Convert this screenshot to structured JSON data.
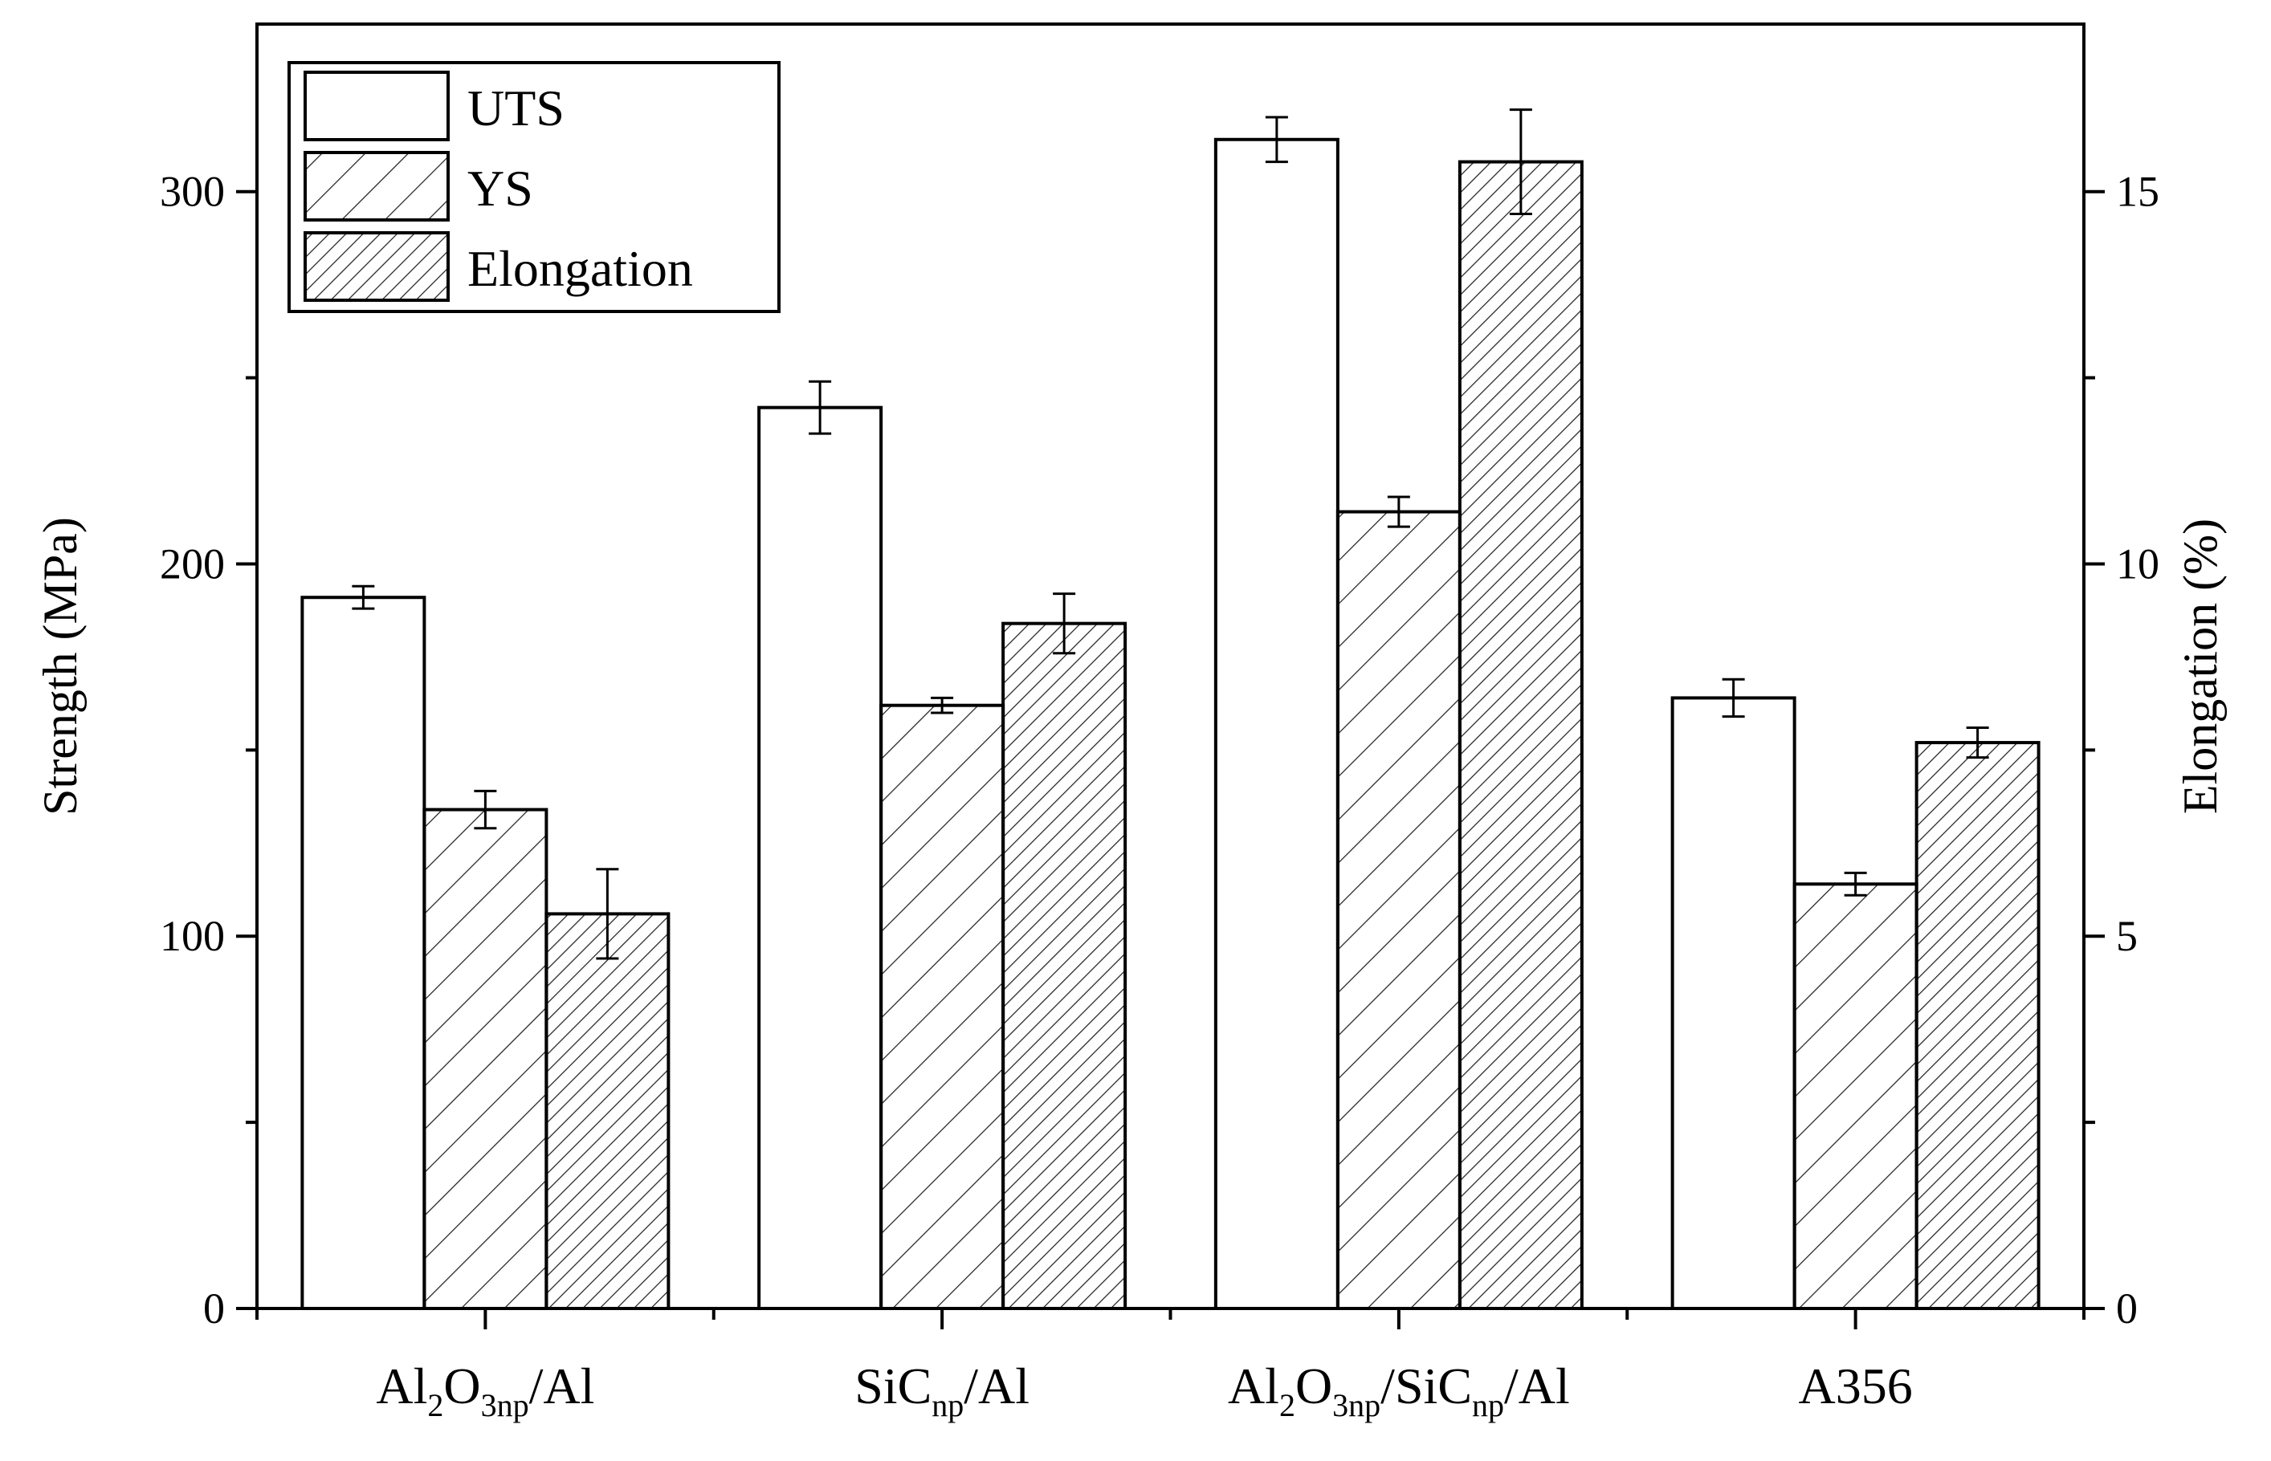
{
  "chart_data": {
    "type": "bar",
    "title": "",
    "xlabel": "",
    "ylabel": "Strength (MPa)",
    "y2label": "Elongation (%)",
    "ylim": [
      0,
      345
    ],
    "y2lim": [
      0,
      17.25
    ],
    "yticks": [
      0,
      100,
      200,
      300
    ],
    "y2ticks": [
      0,
      5,
      10,
      15
    ],
    "categories": [
      {
        "parts": [
          [
            "Al",
            ""
          ],
          [
            "2",
            "sub"
          ],
          [
            "O",
            ""
          ],
          [
            "3np",
            "sub"
          ],
          [
            "/Al",
            ""
          ]
        ]
      },
      {
        "parts": [
          [
            "SiC",
            ""
          ],
          [
            "np",
            "sub"
          ],
          [
            "/Al",
            ""
          ]
        ]
      },
      {
        "parts": [
          [
            "Al",
            ""
          ],
          [
            "2",
            "sub"
          ],
          [
            "O",
            ""
          ],
          [
            "3np",
            "sub"
          ],
          [
            "/SiC",
            ""
          ],
          [
            "np",
            "sub"
          ],
          [
            "/Al",
            ""
          ]
        ]
      },
      {
        "parts": [
          [
            "A356",
            ""
          ]
        ]
      }
    ],
    "series": [
      {
        "name": "UTS",
        "axis": "left",
        "pattern": "none",
        "values": [
          191,
          242,
          314,
          164
        ],
        "errors": [
          3,
          7,
          6,
          5
        ]
      },
      {
        "name": "YS",
        "axis": "left",
        "pattern": "sparse",
        "values": [
          134,
          162,
          214,
          114
        ],
        "errors": [
          5,
          2,
          4,
          3
        ]
      },
      {
        "name": "Elongation",
        "axis": "right",
        "pattern": "dense",
        "values": [
          5.3,
          9.2,
          15.4,
          7.6
        ],
        "errors": [
          0.6,
          0.4,
          0.7,
          0.2
        ]
      }
    ],
    "legend": {
      "position": "top-left",
      "labels": [
        "UTS",
        "YS",
        "Elongation"
      ]
    }
  }
}
